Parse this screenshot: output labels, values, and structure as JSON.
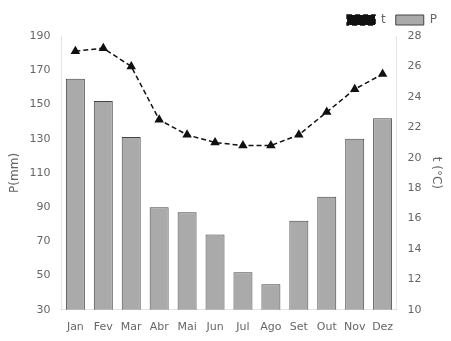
{
  "chart_data": {
    "type": "bar",
    "categories": [
      "Jan",
      "Fev",
      "Mar",
      "Abr",
      "Mai",
      "Jun",
      "Jul",
      "Ago",
      "Set",
      "Out",
      "Nov",
      "Dez"
    ],
    "series": [
      {
        "name": "P",
        "type": "bar",
        "color": "#aaaaaa",
        "values": [
          165,
          152,
          131,
          90,
          87,
          74,
          52,
          45,
          82,
          96,
          130,
          142
        ]
      },
      {
        "name": "t",
        "type": "line",
        "axis": "y2",
        "color": "#111111",
        "marker": "triangle",
        "line_style": "dashed",
        "values": [
          27.0,
          27.2,
          26.0,
          22.5,
          21.5,
          21.0,
          20.8,
          20.8,
          21.5,
          23.0,
          24.5,
          25.5
        ]
      }
    ],
    "ylabel": "P(mm)",
    "y2label": "t (°C)",
    "ylim": [
      30,
      190
    ],
    "yticks": [
      30,
      50,
      70,
      90,
      110,
      130,
      150,
      170,
      190
    ],
    "y2lim": [
      10,
      28
    ],
    "y2ticks": [
      10,
      12,
      14,
      16,
      18,
      20,
      22,
      24,
      26,
      28
    ],
    "grid": false,
    "legend": "upper right"
  }
}
